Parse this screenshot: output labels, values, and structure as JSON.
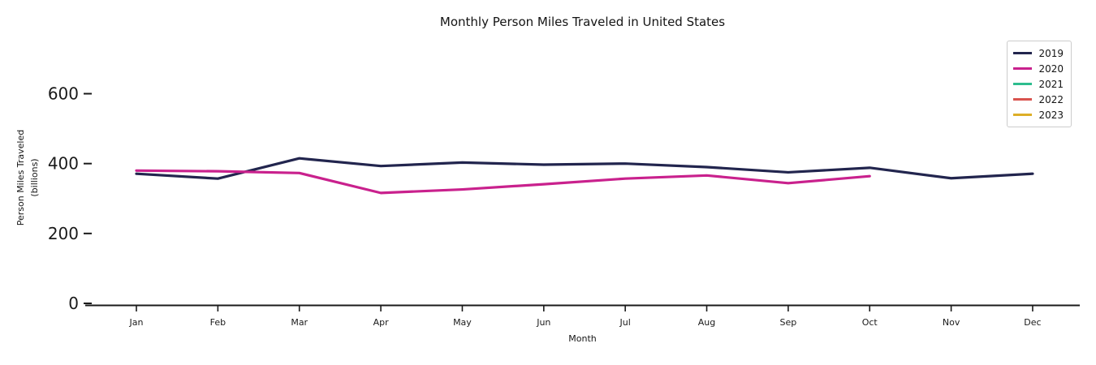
{
  "chart_data": {
    "type": "line",
    "title": "Monthly Person Miles Traveled in United States",
    "xlabel": "Month",
    "ylabel": "Person Miles Traveled",
    "ylabel_unit": "(billions)",
    "categories": [
      "Jan",
      "Feb",
      "Mar",
      "Apr",
      "May",
      "Jun",
      "Jul",
      "Aug",
      "Sep",
      "Oct",
      "Nov",
      "Dec"
    ],
    "y_ticks": [
      0,
      200,
      400,
      600
    ],
    "ylim": [
      0,
      700
    ],
    "grid": false,
    "legend_position": "upper right",
    "axis_color": "#1a1a1a",
    "series": [
      {
        "name": "2019",
        "color": "#22254e",
        "values": [
          371,
          357,
          415,
          393,
          403,
          397,
          400,
          390,
          375,
          388,
          358,
          371
        ]
      },
      {
        "name": "2020",
        "color": "#c9218d",
        "values": [
          380,
          378,
          373,
          316,
          326,
          341,
          357,
          366,
          344,
          364
        ]
      },
      {
        "name": "2021",
        "color": "#2dbd8e",
        "values": []
      },
      {
        "name": "2022",
        "color": "#d9534e",
        "values": []
      },
      {
        "name": "2023",
        "color": "#ddae27",
        "values": []
      }
    ]
  }
}
